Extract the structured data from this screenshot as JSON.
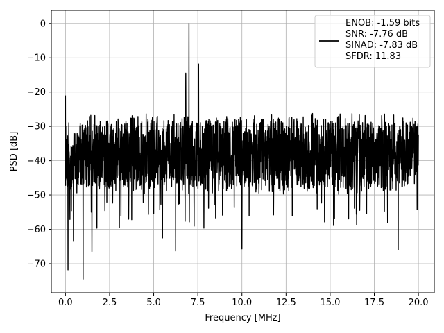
{
  "chart_data": {
    "type": "line",
    "xlabel": "Frequency [MHz]",
    "ylabel": "PSD [dB]",
    "xlim": [
      -0.8,
      20.9
    ],
    "ylim": [
      -78.5,
      3.8
    ],
    "xticks": [
      0.0,
      2.5,
      5.0,
      7.5,
      10.0,
      12.5,
      15.0,
      17.5,
      20.0
    ],
    "xtick_labels": [
      "0.0",
      "2.5",
      "5.0",
      "7.5",
      "10.0",
      "12.5",
      "15.0",
      "17.5",
      "20.0"
    ],
    "yticks": [
      0,
      -10,
      -20,
      -30,
      -40,
      -50,
      -60,
      -70
    ],
    "ytick_labels": [
      "0",
      "−10",
      "−20",
      "−30",
      "−40",
      "−50",
      "−60",
      "−70"
    ],
    "grid": true,
    "legend": {
      "position": "top-right",
      "entries": [
        "ENOB: -1.59 bits",
        "SNR: -7.76 dB",
        "SINAD: -7.83 dB",
        "SFDR: 11.83"
      ]
    },
    "series": [
      {
        "color": "#000000",
        "noise_floor": {
          "x_start": 0.0,
          "x_end": 20.0,
          "upper_env": -28,
          "lower_env": -48,
          "mean": -37
        },
        "peaks": [
          {
            "x": 7.0,
            "y": 0
          },
          {
            "x": 7.55,
            "y": -11.8
          },
          {
            "x": 6.82,
            "y": -14.5
          },
          {
            "x": 0.0,
            "y": -21
          },
          {
            "x": 1.0,
            "y": -74.5
          },
          {
            "x": 0.15,
            "y": -71.8
          },
          {
            "x": 0.45,
            "y": -63.5
          },
          {
            "x": 1.5,
            "y": -66.5
          },
          {
            "x": 6.25,
            "y": -66.3
          },
          {
            "x": 10.0,
            "y": -65.7
          },
          {
            "x": 18.85,
            "y": -66.0
          },
          {
            "x": 5.5,
            "y": -62.5
          }
        ]
      }
    ]
  }
}
